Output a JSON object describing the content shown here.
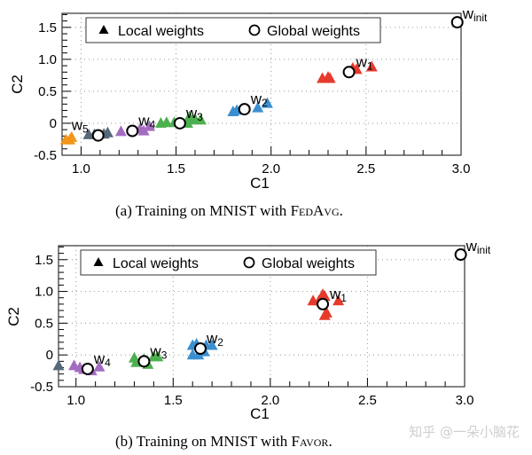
{
  "legend": {
    "local": "Local weights",
    "global": "Global weights"
  },
  "colors": {
    "red": "#e63a2b",
    "blue": "#3a8fd0",
    "green": "#4db04f",
    "purple": "#a46cc0",
    "gray": "#56687a",
    "orange": "#f2961a"
  },
  "watermark": "知乎 @一朵小脑花",
  "chart_data": [
    {
      "type": "scatter",
      "caption_prefix": "(a) Training on MNIST with ",
      "caption_method": "FedAvg",
      "caption_suffix": ".",
      "xlabel": "C1",
      "ylabel": "C2",
      "xlim": [
        0.9,
        3.0
      ],
      "ylim": [
        -0.5,
        1.72
      ],
      "xticks": [
        "1.0",
        "1.5",
        "2.0",
        "2.5",
        "3.0"
      ],
      "yticks": [
        "-0.5",
        "0",
        "0.5",
        "1.0",
        "1.5"
      ],
      "grid": true,
      "legend_position": "top-left",
      "global": [
        {
          "label": "w",
          "sub": "init",
          "x": 2.98,
          "y": 1.58
        },
        {
          "label": "w",
          "sub": "1",
          "x": 2.41,
          "y": 0.8
        },
        {
          "label": "w",
          "sub": "2",
          "x": 1.86,
          "y": 0.22
        },
        {
          "label": "w",
          "sub": "3",
          "x": 1.52,
          "y": 0.0
        },
        {
          "label": "w",
          "sub": "4",
          "x": 1.27,
          "y": -0.12
        },
        {
          "label": "w",
          "sub": "5",
          "x": 1.09,
          "y": -0.19
        }
      ],
      "local": [
        {
          "color": "red",
          "points": [
            [
              2.27,
              0.7
            ],
            [
              2.3,
              0.72
            ],
            [
              2.31,
              0.7
            ],
            [
              2.43,
              0.86
            ],
            [
              2.45,
              0.84
            ],
            [
              2.53,
              0.88
            ]
          ]
        },
        {
          "color": "blue",
          "points": [
            [
              1.8,
              0.18
            ],
            [
              1.82,
              0.2
            ],
            [
              1.85,
              0.21
            ],
            [
              1.93,
              0.24
            ],
            [
              1.98,
              0.31
            ]
          ]
        },
        {
          "color": "green",
          "points": [
            [
              1.42,
              0.0
            ],
            [
              1.45,
              0.01
            ],
            [
              1.49,
              0.01
            ],
            [
              1.56,
              0.0
            ],
            [
              1.57,
              0.1
            ],
            [
              1.58,
              0.05
            ],
            [
              1.6,
              0.06
            ],
            [
              1.63,
              0.05
            ]
          ]
        },
        {
          "color": "purple",
          "points": [
            [
              1.21,
              -0.13
            ],
            [
              1.31,
              -0.09
            ],
            [
              1.33,
              -0.12
            ],
            [
              1.36,
              -0.05
            ]
          ]
        },
        {
          "color": "gray",
          "points": [
            [
              1.04,
              -0.18
            ],
            [
              1.07,
              -0.18
            ],
            [
              1.12,
              -0.17
            ],
            [
              1.14,
              -0.15
            ]
          ]
        },
        {
          "color": "orange",
          "points": [
            [
              0.92,
              -0.26
            ],
            [
              0.94,
              -0.26
            ],
            [
              0.95,
              -0.22
            ]
          ]
        }
      ]
    },
    {
      "type": "scatter",
      "caption_prefix": "(b) Training on MNIST with ",
      "caption_method": "Favor",
      "caption_suffix": ".",
      "xlabel": "C1",
      "ylabel": "C2",
      "xlim": [
        0.91,
        3.0
      ],
      "ylim": [
        -0.5,
        1.72
      ],
      "xticks": [
        "1.0",
        "1.5",
        "2.0",
        "2.5",
        "3.0"
      ],
      "yticks": [
        "-0.5",
        "0",
        "0.5",
        "1.0",
        "1.5"
      ],
      "grid": true,
      "legend_position": "top-left",
      "global": [
        {
          "label": "w",
          "sub": "init",
          "x": 2.98,
          "y": 1.58
        },
        {
          "label": "w",
          "sub": "1",
          "x": 2.27,
          "y": 0.8
        },
        {
          "label": "w",
          "sub": "2",
          "x": 1.64,
          "y": 0.1
        },
        {
          "label": "w",
          "sub": "3",
          "x": 1.35,
          "y": -0.1
        },
        {
          "label": "w",
          "sub": "4",
          "x": 1.06,
          "y": -0.22
        }
      ],
      "local": [
        {
          "color": "red",
          "points": [
            [
              2.22,
              0.85
            ],
            [
              2.25,
              0.85
            ],
            [
              2.27,
              0.95
            ],
            [
              2.28,
              0.92
            ],
            [
              2.35,
              0.85
            ],
            [
              2.28,
              0.62
            ],
            [
              2.29,
              0.66
            ]
          ]
        },
        {
          "color": "blue",
          "points": [
            [
              1.6,
              0.15
            ],
            [
              1.62,
              0.17
            ],
            [
              1.6,
              0.0
            ],
            [
              1.63,
              0.0
            ],
            [
              1.66,
              0.05
            ],
            [
              1.67,
              0.15
            ],
            [
              1.7,
              0.15
            ]
          ]
        },
        {
          "color": "green",
          "points": [
            [
              1.3,
              -0.05
            ],
            [
              1.31,
              -0.12
            ],
            [
              1.35,
              -0.07
            ],
            [
              1.37,
              -0.15
            ],
            [
              1.4,
              -0.03
            ],
            [
              1.42,
              -0.03
            ]
          ]
        },
        {
          "color": "purple",
          "points": [
            [
              0.99,
              -0.17
            ],
            [
              1.02,
              -0.2
            ],
            [
              1.04,
              -0.23
            ],
            [
              1.08,
              -0.25
            ],
            [
              1.12,
              -0.19
            ]
          ]
        },
        {
          "color": "gray",
          "points": [
            [
              0.91,
              -0.17
            ]
          ]
        }
      ]
    }
  ]
}
